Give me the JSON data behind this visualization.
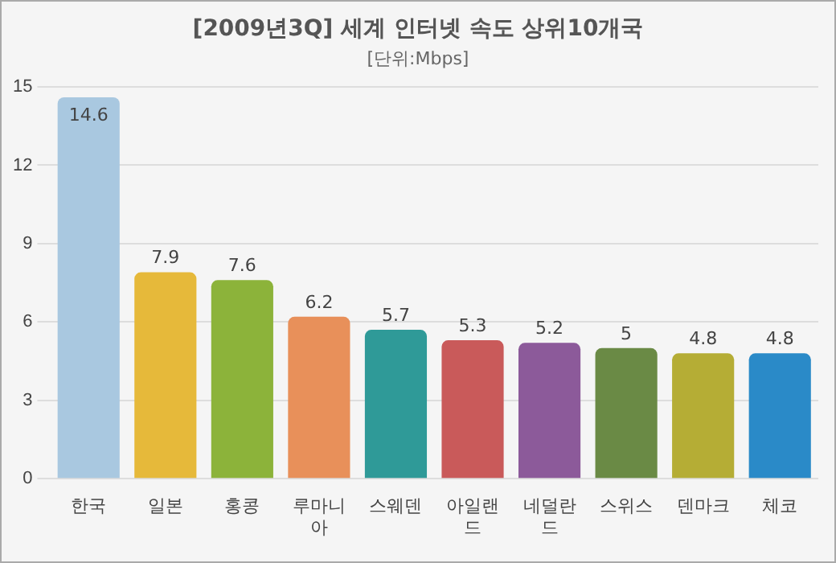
{
  "chart_data": {
    "type": "bar",
    "title": "[2009년3Q] 세계 인터넷 속도 상위10개국",
    "subtitle": "[단위:Mbps]",
    "categories": [
      "한국",
      "일본",
      "홍콩",
      "루마니아",
      "스웨덴",
      "아일랜드",
      "네덜란드",
      "스위스",
      "덴마크",
      "체코"
    ],
    "values": [
      14.6,
      7.9,
      7.6,
      6.2,
      5.7,
      5.3,
      5.2,
      5,
      4.8,
      4.8
    ],
    "colors": [
      "#a9c8e0",
      "#e6b93a",
      "#8cb33a",
      "#e8905a",
      "#2f9a98",
      "#c95a5a",
      "#8c5a9a",
      "#6a8a45",
      "#b5ad35",
      "#2a8ac8"
    ],
    "ylim": [
      0,
      15
    ],
    "yticks": [
      0,
      3,
      6,
      9,
      12,
      15
    ],
    "grid": "y",
    "data_labels": true
  }
}
